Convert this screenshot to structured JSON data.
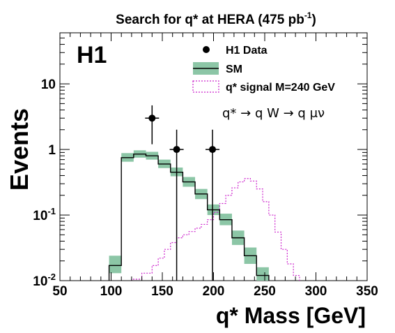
{
  "chart_data": {
    "type": "histogram",
    "title": "Search for q* at HERA (475 pb-1)",
    "title_parts": {
      "main": "Search for q* at HERA (475 pb",
      "sup": "-1",
      "end": ")"
    },
    "xlabel": "q* Mass [GeV]",
    "ylabel": "Events",
    "experiment": "H1",
    "process": "q* → q W → q μν",
    "xlim": [
      50,
      350
    ],
    "ylim": [
      0.01,
      60
    ],
    "y_scale": "log",
    "x_ticks": [
      50,
      100,
      150,
      200,
      250,
      300,
      350
    ],
    "y_ticks": [
      {
        "value": 0.01,
        "base": "10",
        "exp": "-2"
      },
      {
        "value": 0.1,
        "base": "10",
        "exp": "-1"
      },
      {
        "value": 1,
        "base": "1",
        "exp": ""
      },
      {
        "value": 10,
        "base": "10",
        "exp": ""
      }
    ],
    "legend_position": "top-right",
    "legend": [
      {
        "key": "data",
        "label": "H1 Data"
      },
      {
        "key": "sm",
        "label": "SM"
      },
      {
        "key": "signal",
        "label": "q* signal M=240 GeV"
      }
    ],
    "series": [
      {
        "name": "H1 Data",
        "type": "points",
        "points": [
          {
            "x": 140,
            "y": 3,
            "ylow": 1.2,
            "yhigh": 4.7
          },
          {
            "x": 164,
            "y": 1,
            "ylow": 0.01,
            "yhigh": 2.0
          },
          {
            "x": 199,
            "y": 1,
            "ylow": 0.01,
            "yhigh": 2.0
          }
        ]
      },
      {
        "name": "SM",
        "type": "step",
        "bins": [
          {
            "x0": 98,
            "x1": 110,
            "y": 0.017,
            "lo": 0.013,
            "hi": 0.024
          },
          {
            "x0": 110,
            "x1": 122,
            "y": 0.75,
            "lo": 0.65,
            "hi": 0.88
          },
          {
            "x0": 122,
            "x1": 134,
            "y": 0.85,
            "lo": 0.75,
            "hi": 0.97
          },
          {
            "x0": 134,
            "x1": 146,
            "y": 0.8,
            "lo": 0.7,
            "hi": 0.92
          },
          {
            "x0": 146,
            "x1": 158,
            "y": 0.6,
            "lo": 0.52,
            "hi": 0.7
          },
          {
            "x0": 158,
            "x1": 170,
            "y": 0.45,
            "lo": 0.39,
            "hi": 0.53
          },
          {
            "x0": 170,
            "x1": 182,
            "y": 0.32,
            "lo": 0.27,
            "hi": 0.38
          },
          {
            "x0": 182,
            "x1": 194,
            "y": 0.21,
            "lo": 0.175,
            "hi": 0.25
          },
          {
            "x0": 194,
            "x1": 206,
            "y": 0.12,
            "lo": 0.1,
            "hi": 0.145
          },
          {
            "x0": 206,
            "x1": 218,
            "y": 0.085,
            "lo": 0.07,
            "hi": 0.105
          },
          {
            "x0": 218,
            "x1": 230,
            "y": 0.045,
            "lo": 0.035,
            "hi": 0.058
          },
          {
            "x0": 230,
            "x1": 242,
            "y": 0.024,
            "lo": 0.018,
            "hi": 0.032
          },
          {
            "x0": 242,
            "x1": 254,
            "y": 0.012,
            "lo": 0.01,
            "hi": 0.016
          }
        ]
      },
      {
        "name": "q* signal M=240 GeV",
        "type": "step",
        "bins": [
          {
            "x0": 120,
            "x1": 130,
            "y": 0.0105
          },
          {
            "x0": 130,
            "x1": 140,
            "y": 0.013
          },
          {
            "x0": 140,
            "x1": 146,
            "y": 0.017
          },
          {
            "x0": 146,
            "x1": 152,
            "y": 0.022
          },
          {
            "x0": 152,
            "x1": 158,
            "y": 0.03
          },
          {
            "x0": 158,
            "x1": 164,
            "y": 0.038
          },
          {
            "x0": 164,
            "x1": 170,
            "y": 0.045
          },
          {
            "x0": 170,
            "x1": 176,
            "y": 0.05
          },
          {
            "x0": 176,
            "x1": 182,
            "y": 0.056
          },
          {
            "x0": 182,
            "x1": 188,
            "y": 0.063
          },
          {
            "x0": 188,
            "x1": 194,
            "y": 0.072
          },
          {
            "x0": 194,
            "x1": 200,
            "y": 0.085
          },
          {
            "x0": 200,
            "x1": 206,
            "y": 0.11
          },
          {
            "x0": 206,
            "x1": 212,
            "y": 0.15
          },
          {
            "x0": 212,
            "x1": 218,
            "y": 0.2
          },
          {
            "x0": 218,
            "x1": 224,
            "y": 0.26
          },
          {
            "x0": 224,
            "x1": 230,
            "y": 0.32
          },
          {
            "x0": 230,
            "x1": 236,
            "y": 0.36
          },
          {
            "x0": 236,
            "x1": 242,
            "y": 0.33
          },
          {
            "x0": 242,
            "x1": 248,
            "y": 0.25
          },
          {
            "x0": 248,
            "x1": 254,
            "y": 0.16
          },
          {
            "x0": 254,
            "x1": 260,
            "y": 0.1
          },
          {
            "x0": 260,
            "x1": 266,
            "y": 0.055
          },
          {
            "x0": 266,
            "x1": 272,
            "y": 0.03
          },
          {
            "x0": 272,
            "x1": 278,
            "y": 0.018
          },
          {
            "x0": 278,
            "x1": 284,
            "y": 0.012
          }
        ]
      }
    ],
    "colors": {
      "sm_band": "#8cc6a6",
      "sm_line": "#000000",
      "signal": "#cc22cc",
      "data": "#000000"
    },
    "grid": false
  }
}
